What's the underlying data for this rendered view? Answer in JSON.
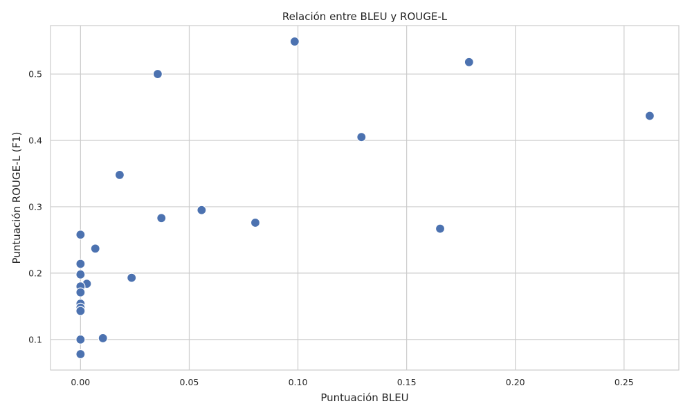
{
  "chart_data": {
    "type": "scatter",
    "title": "Relación entre BLEU y ROUGE-L",
    "xlabel": "Puntuación BLEU",
    "ylabel": "Puntuación ROUGE-L (F1)",
    "xlim": [
      -0.0138,
      0.2752
    ],
    "ylim": [
      0.054,
      0.573
    ],
    "xticks": [
      0.0,
      0.05,
      0.1,
      0.15,
      0.2,
      0.25
    ],
    "xtick_labels": [
      "0.00",
      "0.05",
      "0.10",
      "0.15",
      "0.20",
      "0.25"
    ],
    "yticks": [
      0.1,
      0.2,
      0.3,
      0.4,
      0.5
    ],
    "ytick_labels": [
      "0.1",
      "0.2",
      "0.3",
      "0.4",
      "0.5"
    ],
    "grid": true,
    "marker_color": "#4c72b0",
    "points": [
      {
        "x": 0.0985,
        "y": 0.549
      },
      {
        "x": 0.1787,
        "y": 0.518
      },
      {
        "x": 0.0355,
        "y": 0.5
      },
      {
        "x": 0.2618,
        "y": 0.437
      },
      {
        "x": 0.1292,
        "y": 0.405
      },
      {
        "x": 0.018,
        "y": 0.348
      },
      {
        "x": 0.0557,
        "y": 0.295
      },
      {
        "x": 0.0372,
        "y": 0.283
      },
      {
        "x": 0.0804,
        "y": 0.276
      },
      {
        "x": 0.1654,
        "y": 0.267
      },
      {
        "x": 0.0,
        "y": 0.258
      },
      {
        "x": 0.0068,
        "y": 0.237
      },
      {
        "x": 0.0,
        "y": 0.214
      },
      {
        "x": 0.0,
        "y": 0.198
      },
      {
        "x": 0.0235,
        "y": 0.193
      },
      {
        "x": 0.0029,
        "y": 0.184
      },
      {
        "x": 0.0,
        "y": 0.18
      },
      {
        "x": 0.0,
        "y": 0.171
      },
      {
        "x": 0.0,
        "y": 0.154
      },
      {
        "x": 0.0,
        "y": 0.148
      },
      {
        "x": 0.0,
        "y": 0.143
      },
      {
        "x": 0.0103,
        "y": 0.102
      },
      {
        "x": 0.0,
        "y": 0.1
      },
      {
        "x": 0.0,
        "y": 0.078
      }
    ]
  }
}
